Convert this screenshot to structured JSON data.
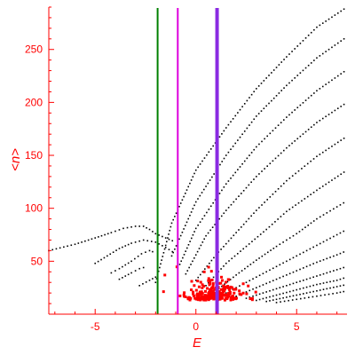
{
  "chart_data": {
    "type": "scatter",
    "xlabel": "E",
    "ylabel": "<n>",
    "xlim": [
      -7.3,
      7.5
    ],
    "ylim": [
      0,
      290
    ],
    "x_ticks": [
      -5,
      0,
      5
    ],
    "x_tick_labels": [
      "-5",
      "0",
      "5"
    ],
    "y_ticks": [
      50,
      100,
      150,
      200,
      250
    ],
    "y_tick_labels": [
      "50",
      "100",
      "150",
      "200",
      "250"
    ],
    "grid": false,
    "colors": {
      "axis": "#ff0000",
      "points": "#000000",
      "cluster": "#ff0000",
      "line_green": "#008000",
      "line_magenta": "#dd00dd",
      "line_purple": "#8a2be2"
    },
    "vertical_lines": [
      {
        "x": -1.9,
        "color": "#008000"
      },
      {
        "x": -0.9,
        "color": "#dd00dd"
      },
      {
        "x": 1.05,
        "color": "#8a2be2"
      }
    ],
    "series": [
      {
        "x": [
          -7.3,
          -6.0,
          -5.0,
          -4.2,
          -3.6,
          -3.0,
          -2.6,
          -2.3,
          -2.0,
          -1.5,
          -1.0
        ],
        "y": [
          60,
          66,
          72,
          77,
          81,
          83,
          83,
          80,
          76,
          72,
          68
        ]
      },
      {
        "x": [
          -5.0,
          -4.4,
          -3.8,
          -3.2,
          -2.6,
          -2.0,
          -1.5,
          -1.0
        ],
        "y": [
          48,
          55,
          62,
          67,
          70,
          68,
          63,
          57
        ]
      },
      {
        "x": [
          -4.2,
          -3.8,
          -3.2,
          -2.7,
          -2.3,
          -2.0
        ],
        "y": [
          39,
          43,
          50,
          57,
          60,
          58
        ]
      },
      {
        "x": [
          -3.8,
          -3.2,
          -2.8,
          -2.4
        ],
        "y": [
          33,
          39,
          43,
          45
        ]
      },
      {
        "x": [
          -2.8,
          -2.3,
          -2.0,
          -1.9
        ],
        "y": [
          27,
          32,
          35,
          36
        ]
      },
      {
        "x": [
          -2.0,
          -1.2,
          0.0,
          1.5,
          3.0,
          4.5,
          6.0,
          7.5
        ],
        "y": [
          30,
          86,
          136,
          176,
          213,
          243,
          271,
          290
        ]
      },
      {
        "x": [
          -1.2,
          0.0,
          1.5,
          3.0,
          4.5,
          6.0,
          7.5
        ],
        "y": [
          55,
          106,
          150,
          187,
          216,
          242,
          262
        ]
      },
      {
        "x": [
          -0.8,
          0.0,
          1.5,
          3.0,
          4.5,
          6.0,
          7.5
        ],
        "y": [
          47,
          81,
          123,
          158,
          186,
          211,
          231
        ]
      },
      {
        "x": [
          -0.5,
          0.5,
          1.5,
          3.0,
          4.5,
          6.0,
          7.5
        ],
        "y": [
          38,
          74,
          98,
          130,
          157,
          181,
          200
        ]
      },
      {
        "x": [
          0.0,
          1.0,
          2.0,
          3.0,
          4.5,
          6.0,
          7.5
        ],
        "y": [
          32,
          56,
          77,
          98,
          126,
          149,
          168
        ]
      },
      {
        "x": [
          0.5,
          1.5,
          2.5,
          3.5,
          4.5,
          6.0,
          7.5
        ],
        "y": [
          27,
          48,
          64,
          80,
          97,
          117,
          136
        ]
      },
      {
        "x": [
          1.0,
          2.0,
          3.0,
          4.0,
          5.0,
          6.0,
          7.5
        ],
        "y": [
          22,
          37,
          51,
          64,
          76,
          90,
          107
        ]
      },
      {
        "x": [
          1.5,
          2.5,
          3.5,
          4.5,
          5.5,
          6.5,
          7.5
        ],
        "y": [
          20,
          30,
          40,
          50,
          60,
          70,
          80
        ]
      },
      {
        "x": [
          2.0,
          3.0,
          4.0,
          5.0,
          6.0,
          7.0,
          7.5
        ],
        "y": [
          17,
          25,
          33,
          41,
          49,
          56,
          60
        ]
      },
      {
        "x": [
          2.5,
          3.5,
          4.5,
          5.5,
          6.5,
          7.5
        ],
        "y": [
          15,
          21,
          27,
          33,
          39,
          45
        ]
      },
      {
        "x": [
          3.0,
          4.0,
          5.0,
          6.0,
          7.0,
          7.5
        ],
        "y": [
          13,
          18,
          23,
          28,
          32,
          35
        ]
      },
      {
        "x": [
          3.5,
          4.5,
          5.5,
          6.5,
          7.5
        ],
        "y": [
          12,
          16,
          20,
          24,
          28
        ]
      },
      {
        "x": [
          4.0,
          5.0,
          6.0,
          7.0,
          7.5
        ],
        "y": [
          11,
          14,
          17,
          20,
          22
        ]
      }
    ],
    "cluster": {
      "center_x": 0.9,
      "center_y": 16,
      "spread_x": 1.2,
      "spread_y": 7,
      "count": 230
    }
  }
}
